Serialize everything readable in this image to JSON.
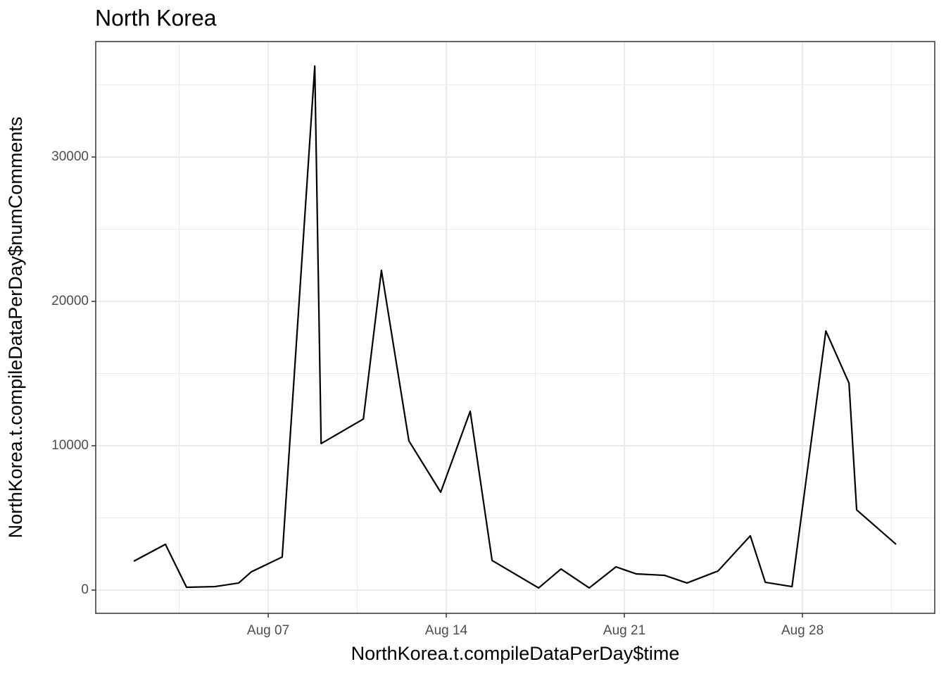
{
  "chart_data": {
    "type": "line",
    "title": "North Korea",
    "x_label": "NorthKorea.t.compileDataPerDay$time",
    "y_label": "NorthKorea.t.compileDataPerDay$numComments",
    "x": [
      1.715,
      2.96,
      3.79,
      4.9,
      5.84,
      6.34,
      7.55,
      8.83,
      9.08,
      10.74,
      11.45,
      12.53,
      13.78,
      14.94,
      15.8,
      17.63,
      18.51,
      19.62,
      20.67,
      21.47,
      22.58,
      23.46,
      24.68,
      25.95,
      26.54,
      27.59,
      28.92,
      29.83,
      30.13,
      31.68
    ],
    "series": [
      {
        "name": "numComments",
        "color": "#000000",
        "values": [
          2000,
          3170,
          195,
          240,
          490,
          1270,
          2290,
          36300,
          10150,
          11850,
          22150,
          10340,
          6780,
          12390,
          2050,
          150,
          1460,
          150,
          1610,
          1120,
          1020,
          490,
          1320,
          3760,
          540,
          240,
          17950,
          14340,
          5560,
          3170
        ]
      }
    ],
    "xlim": [
      0.22,
      33.2
    ],
    "xticks": [
      {
        "value": 7,
        "label": "Aug 07"
      },
      {
        "value": 14,
        "label": "Aug 14"
      },
      {
        "value": 21,
        "label": "Aug 21"
      },
      {
        "value": 28,
        "label": "Aug 28"
      }
    ],
    "ylim": [
      -1610,
      38000
    ],
    "yticks": [
      0,
      10000,
      20000,
      30000
    ],
    "grid": true
  }
}
